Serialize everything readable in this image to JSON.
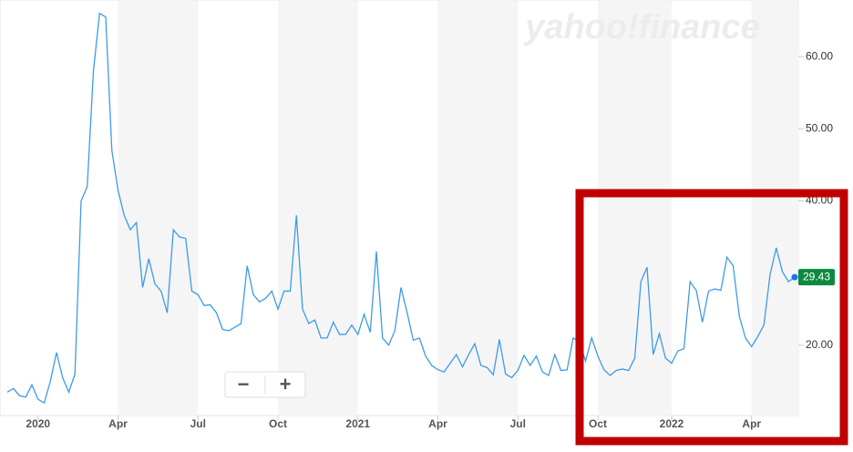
{
  "chart_data": {
    "type": "line",
    "watermark": "yahoo!finance",
    "zoom_out": "−",
    "zoom_in": "+",
    "last_value_label": "29.43",
    "categories": [
      null,
      null,
      null,
      null,
      null,
      "2020",
      null,
      null,
      null,
      null,
      null,
      null,
      null,
      null,
      null,
      null,
      null,
      null,
      "Apr",
      null,
      null,
      null,
      null,
      null,
      null,
      null,
      null,
      null,
      null,
      null,
      null,
      "Jul",
      null,
      null,
      null,
      null,
      null,
      null,
      null,
      null,
      null,
      null,
      null,
      null,
      "Oct",
      null,
      null,
      null,
      null,
      null,
      null,
      null,
      null,
      null,
      null,
      null,
      null,
      "2021",
      null,
      null,
      null,
      null,
      null,
      null,
      null,
      null,
      null,
      null,
      null,
      null,
      "Apr",
      null,
      null,
      null,
      null,
      null,
      null,
      null,
      null,
      null,
      null,
      null,
      null,
      "Jul",
      null,
      null,
      null,
      null,
      null,
      null,
      null,
      null,
      null,
      null,
      null,
      null,
      "Oct",
      null,
      null,
      null,
      null,
      null,
      null,
      null,
      null,
      null,
      null,
      null,
      "2022",
      null,
      null,
      null,
      null,
      null,
      null,
      null,
      null,
      null,
      null,
      null,
      null,
      "Apr",
      null,
      null,
      null,
      null,
      null,
      null,
      null
    ],
    "series": [
      {
        "color": "#3d9be9",
        "values": [
          13.5,
          14,
          13,
          12.8,
          14.5,
          12.5,
          12,
          15,
          19,
          15.5,
          13.5,
          16,
          40,
          42,
          58,
          66,
          65.5,
          47,
          41.5,
          38,
          36,
          37,
          28,
          32,
          28.5,
          27.5,
          24.5,
          36,
          35,
          34.8,
          27.5,
          27,
          25.5,
          25.6,
          24.5,
          22.2,
          22,
          22.5,
          23,
          31,
          27,
          26,
          26.5,
          27.5,
          25,
          27.5,
          27.5,
          38,
          25,
          23,
          23.5,
          21,
          21,
          23.2,
          21.5,
          21.5,
          22.8,
          21.5,
          24.3,
          21.8,
          33,
          21,
          20,
          22,
          28,
          24.5,
          20.7,
          21,
          18.5,
          17.2,
          16.6,
          16.3,
          17.5,
          18.7,
          17,
          18.7,
          20.2,
          17.2,
          16.9,
          15.9,
          20.8,
          16,
          15.5,
          16.5,
          18.6,
          17.2,
          18.5,
          16.3,
          15.8,
          18.7,
          16.5,
          16.6,
          21,
          20.5,
          17.8,
          21,
          18.5,
          16.6,
          15.8,
          16.5,
          16.7,
          16.5,
          18.2,
          28.8,
          30.8,
          18.7,
          21.6,
          18.2,
          17.5,
          19.2,
          19.5,
          28.8,
          27.6,
          23.2,
          27.5,
          27.8,
          27.6,
          32.2,
          31,
          24,
          21,
          19.8,
          21.2,
          22.8,
          29.8,
          33.5,
          30.2,
          28.8,
          29.43
        ]
      }
    ],
    "ylim": [
      10.25,
      67.85
    ],
    "yticks": [
      {
        "value": 20,
        "label": "20.00"
      },
      {
        "value": 40,
        "label": "40.00"
      },
      {
        "value": 50,
        "label": "50.00"
      },
      {
        "value": 60,
        "label": "60.00"
      }
    ]
  }
}
